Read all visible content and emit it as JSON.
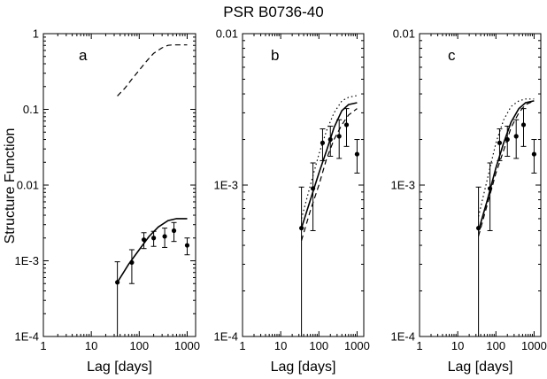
{
  "chart_data": {
    "type": "scatter",
    "title": "PSR B0736-40",
    "ylabel": "Structure Function",
    "xlabel": "Lag [days]",
    "xscale": "log",
    "yscale": "log",
    "xlim": [
      1,
      1500
    ],
    "x_ticks": [
      1,
      10,
      100,
      1000
    ],
    "x_tick_labels": [
      "1",
      "10",
      "100",
      "1000"
    ],
    "observed": {
      "x": [
        35,
        70,
        125,
        200,
        340,
        530,
        1000
      ],
      "y": [
        0.00052,
        0.00095,
        0.0019,
        0.002,
        0.0021,
        0.0025,
        0.0016
      ],
      "y_err": [
        0.00045,
        0.00045,
        0.00045,
        0.00045,
        0.0006,
        0.0007,
        0.0004
      ]
    },
    "panels": [
      {
        "label": "a",
        "ylim": [
          0.0001,
          1
        ],
        "y_ticks": [
          0.0001,
          0.001,
          0.01,
          0.1,
          1
        ],
        "y_tick_labels": [
          "1E-4",
          "1E-3",
          "0.01",
          "0.1",
          "1"
        ],
        "series": [
          {
            "style": "solid",
            "x": [
              35,
              60,
              100,
              160,
              250,
              400,
              600,
              1000
            ],
            "y": [
              0.00052,
              0.0009,
              0.0014,
              0.0021,
              0.0028,
              0.0034,
              0.0036,
              0.0036
            ]
          },
          {
            "style": "dashed",
            "x": [
              35,
              50,
              70,
              100,
              150,
              200,
              300,
              400,
              500,
              700,
              1000
            ],
            "y": [
              0.15,
              0.19,
              0.25,
              0.33,
              0.45,
              0.55,
              0.65,
              0.7,
              0.71,
              0.71,
              0.71
            ]
          }
        ]
      },
      {
        "label": "b",
        "ylim": [
          0.0001,
          0.01
        ],
        "y_ticks": [
          0.0001,
          0.001,
          0.01
        ],
        "y_tick_labels": [
          "1E-4",
          "1E-3",
          "0.01"
        ],
        "series": [
          {
            "style": "solid",
            "x": [
              35,
              60,
              100,
              160,
              250,
              400,
              600,
              1000
            ],
            "y": [
              0.00052,
              0.0008,
              0.0012,
              0.0017,
              0.0024,
              0.0031,
              0.0034,
              0.0035
            ]
          },
          {
            "style": "dashed",
            "x": [
              35,
              60,
              100,
              160,
              250,
              400,
              600,
              1000
            ],
            "y": [
              0.00043,
              0.00068,
              0.001,
              0.0015,
              0.002,
              0.0025,
              0.0029,
              0.0032
            ]
          },
          {
            "style": "dotted",
            "x": [
              35,
              60,
              100,
              160,
              250,
              400,
              600,
              1000
            ],
            "y": [
              0.0006,
              0.001,
              0.0016,
              0.0023,
              0.003,
              0.0036,
              0.0038,
              0.0039
            ]
          }
        ]
      },
      {
        "label": "c",
        "ylim": [
          0.0001,
          0.01
        ],
        "y_ticks": [
          0.0001,
          0.001,
          0.01
        ],
        "y_tick_labels": [
          "1E-4",
          "1E-3",
          "0.01"
        ],
        "series": [
          {
            "style": "solid",
            "x": [
              35,
              60,
              100,
              160,
              250,
              400,
              600,
              1000
            ],
            "y": [
              0.0005,
              0.0008,
              0.0013,
              0.0019,
              0.0026,
              0.0032,
              0.0035,
              0.0036
            ]
          },
          {
            "style": "dashed",
            "x": [
              35,
              60,
              100,
              160,
              250,
              400,
              600,
              1000
            ],
            "y": [
              0.00046,
              0.00075,
              0.0012,
              0.0017,
              0.0024,
              0.003,
              0.0034,
              0.0036
            ]
          },
          {
            "style": "dotted",
            "x": [
              35,
              60,
              100,
              160,
              250,
              400,
              600,
              1000
            ],
            "y": [
              0.00062,
              0.0011,
              0.0019,
              0.0027,
              0.0033,
              0.0036,
              0.0037,
              0.0037
            ]
          }
        ]
      }
    ]
  }
}
